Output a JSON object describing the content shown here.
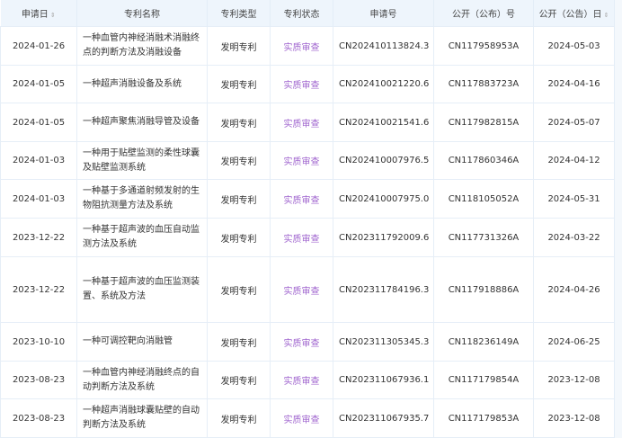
{
  "headers": [
    "申请日",
    "专利名称",
    "专利类型",
    "专利状态",
    "申请号",
    "公开（公布）号",
    "公开（公告）日"
  ],
  "sortable": [
    true,
    false,
    false,
    false,
    false,
    false,
    true
  ],
  "colors": {
    "header_bg": "#eef5fc",
    "status": "#a065cf"
  },
  "rows": [
    {
      "date": "2024-01-26",
      "name": "一种血管内神经消融术消融终点的判断方法及消融设备",
      "type": "发明专利",
      "status": "实质审查",
      "app_no": "CN202410113824.3",
      "pub_no": "CN117958953A",
      "pub_date": "2024-05-03"
    },
    {
      "date": "2024-01-05",
      "name": "一种超声消融设备及系统",
      "type": "发明专利",
      "status": "实质审查",
      "app_no": "CN202410021220.6",
      "pub_no": "CN117883723A",
      "pub_date": "2024-04-16"
    },
    {
      "date": "2024-01-05",
      "name": "一种超声聚焦消融导管及设备",
      "type": "发明专利",
      "status": "实质审查",
      "app_no": "CN202410021541.6",
      "pub_no": "CN117982815A",
      "pub_date": "2024-05-07"
    },
    {
      "date": "2024-01-03",
      "name": "一种用于贴壁监测的柔性球囊及贴壁监测系统",
      "type": "发明专利",
      "status": "实质审查",
      "app_no": "CN202410007976.5",
      "pub_no": "CN117860346A",
      "pub_date": "2024-04-12"
    },
    {
      "date": "2024-01-03",
      "name": "一种基于多通道射频发射的生物阻抗测量方法及系统",
      "type": "发明专利",
      "status": "实质审查",
      "app_no": "CN202410007975.0",
      "pub_no": "CN118105052A",
      "pub_date": "2024-05-31"
    },
    {
      "date": "2023-12-22",
      "name": "一种基于超声波的血压自动监测方法及系统",
      "type": "发明专利",
      "status": "实质审查",
      "app_no": "CN202311792009.6",
      "pub_no": "CN117731326A",
      "pub_date": "2024-03-22"
    },
    {
      "date": "2023-12-22",
      "name": "一种基于超声波的血压监测装置、系统及方法",
      "type": "发明专利",
      "status": "实质审查",
      "app_no": "CN202311784196.3",
      "pub_no": "CN117918886A",
      "pub_date": "2024-04-26"
    },
    {
      "date": "2023-10-10",
      "name": "一种可调控靶向消融管",
      "type": "发明专利",
      "status": "实质审查",
      "app_no": "CN202311305345.3",
      "pub_no": "CN118236149A",
      "pub_date": "2024-06-25"
    },
    {
      "date": "2023-08-23",
      "name": "一种血管内神经消融终点的自动判断方法及系统",
      "type": "发明专利",
      "status": "实质审查",
      "app_no": "CN202311067936.1",
      "pub_no": "CN117179854A",
      "pub_date": "2023-12-08"
    },
    {
      "date": "2023-08-23",
      "name": "一种超声消融球囊贴壁的自动判断方法及系统",
      "type": "发明专利",
      "status": "实质审查",
      "app_no": "CN202311067935.7",
      "pub_no": "CN117179853A",
      "pub_date": "2023-12-08"
    }
  ]
}
